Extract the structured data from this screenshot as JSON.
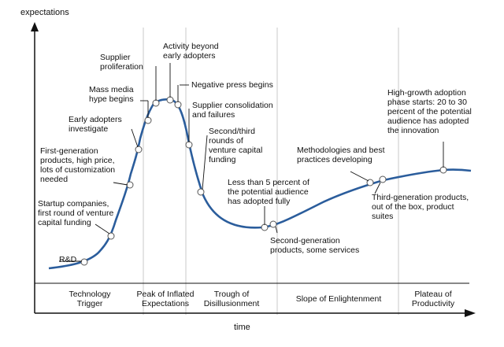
{
  "axes": {
    "y_label": "expectations",
    "x_label": "time"
  },
  "phases": [
    {
      "id": "trigger",
      "label": "Technology\nTrigger"
    },
    {
      "id": "peak",
      "label": "Peak of Inflated\nExpectations"
    },
    {
      "id": "trough",
      "label": "Trough of\nDisillusionment"
    },
    {
      "id": "slope",
      "label": "Slope of Enlightenment"
    },
    {
      "id": "plateau",
      "label": "Plateau of\nProductivity"
    }
  ],
  "milestones": [
    {
      "id": "rd",
      "text": "R&D"
    },
    {
      "id": "startup",
      "text": "Startup companies,\nfirst round of venture\ncapital funding"
    },
    {
      "id": "firstgen",
      "text": "First-generation\nproducts, high price,\nlots of customization\nneeded"
    },
    {
      "id": "early",
      "text": "Early adopters\ninvestigate"
    },
    {
      "id": "mass",
      "text": "Mass media\nhype begins"
    },
    {
      "id": "supplier",
      "text": "Supplier\nproliferation"
    },
    {
      "id": "activity",
      "text": "Activity beyond\nearly adopters"
    },
    {
      "id": "negative",
      "text": "Negative press begins"
    },
    {
      "id": "consolidation",
      "text": "Supplier consolidation\nand failures"
    },
    {
      "id": "second_third",
      "text": "Second/third\nrounds of\nventure capital\nfunding"
    },
    {
      "id": "less5",
      "text": "Less than 5 percent of\nthe potential audience\nhas adopted fully"
    },
    {
      "id": "secondgen",
      "text": "Second-generation\nproducts, some services"
    },
    {
      "id": "methodologies",
      "text": "Methodologies and best\npractices developing"
    },
    {
      "id": "thirdgen",
      "text": "Third-generation products,\nout of the box, product\nsuites"
    },
    {
      "id": "highgrowth",
      "text": "High-growth adoption\nphase starts: 20 to 30\npercent of the potential\naudience has adopted\nthe innovation"
    }
  ]
}
